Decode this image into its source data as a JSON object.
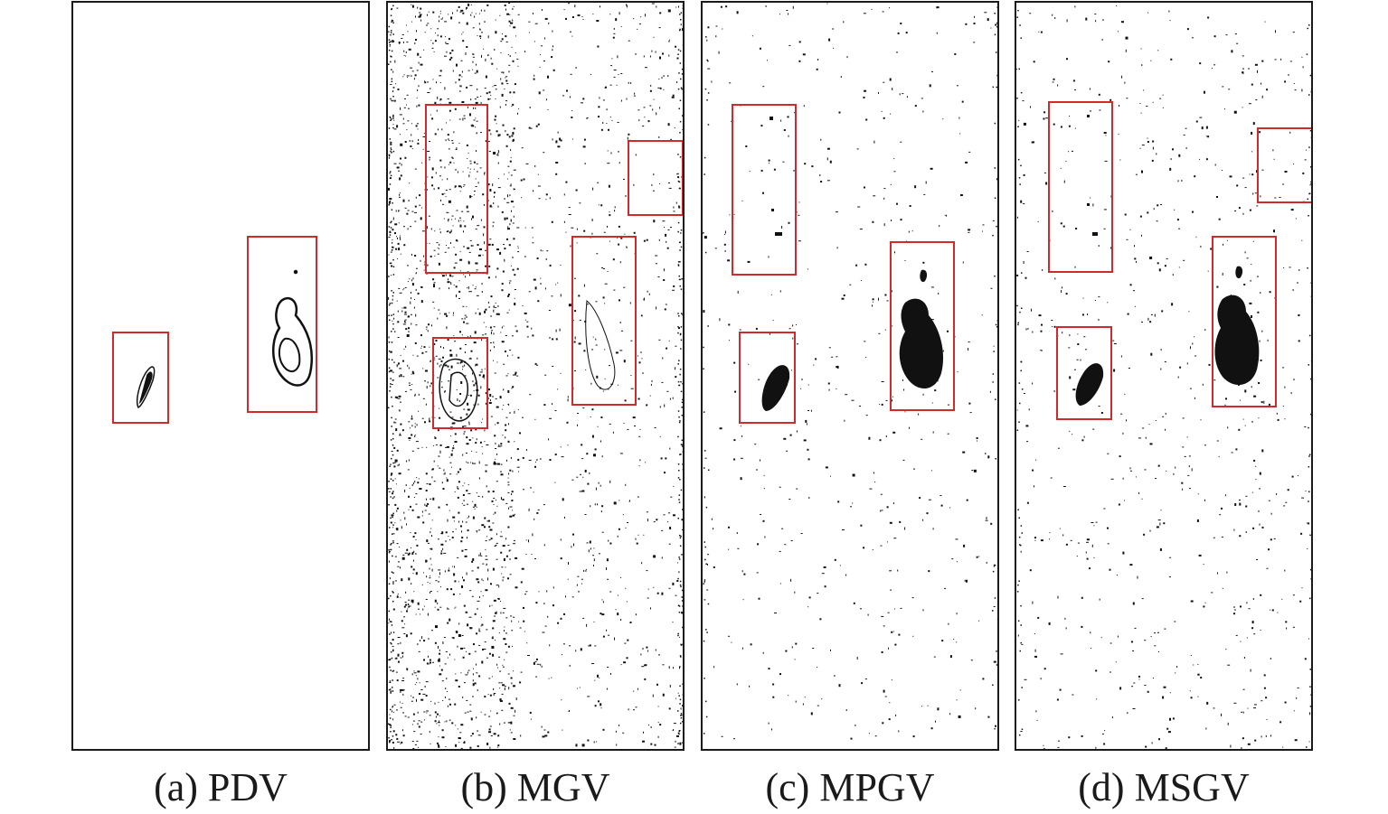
{
  "panels": [
    {
      "id": "pdv",
      "caption": "(a) PDV",
      "noise": 0
    },
    {
      "id": "mgv",
      "caption": "(b) MGV",
      "noise": 2600
    },
    {
      "id": "mpgv",
      "caption": "(c) MPGV",
      "noise": 500
    },
    {
      "id": "msgv",
      "caption": "(d) MSGV",
      "noise": 700
    }
  ],
  "colors": {
    "frame": "#1a1a1a",
    "roi_box": "#d02a2a",
    "segment": "#111111"
  }
}
